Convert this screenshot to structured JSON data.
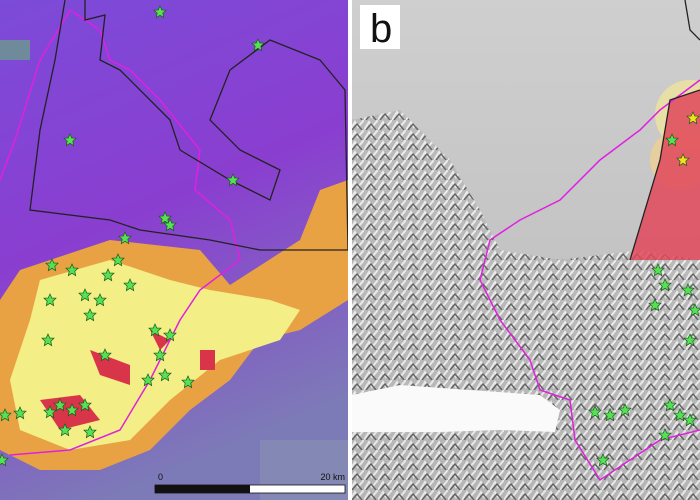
{
  "panels": [
    {
      "scale_bar": {
        "start": "0",
        "end": "20 km"
      }
    },
    {
      "label": "b"
    }
  ]
}
